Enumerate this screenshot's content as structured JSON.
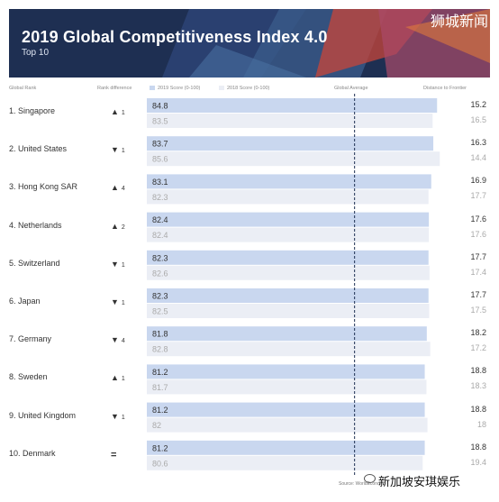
{
  "header": {
    "title": "2019 Global Competitiveness Index 4.0",
    "subtitle": "Top 10",
    "watermark": "狮城新闻",
    "col_rank": "Global Rank",
    "col_diff": "Rank difference",
    "legend_2019": "2019 Score (0-100)",
    "legend_2018": "2018 Score (0-100)",
    "col_global_avg": "Global Average",
    "col_distance": "Distance to Frontier"
  },
  "footer": {
    "source": "Source: WorldEcono...",
    "watermark": "新加坡安琪娱乐"
  },
  "colors": {
    "bar_2019": "#c9d7ef",
    "bar_2018": "#ebeef5",
    "banner": "#1e2f52",
    "avg_line": "#1e2f52"
  },
  "chart_data": {
    "type": "bar",
    "title": "2019 Global Competitiveness Index 4.0",
    "subtitle": "Top 10",
    "xlim": [
      0,
      100
    ],
    "global_average": 60.7,
    "rows": [
      {
        "rank_label": "1. Singapore",
        "diff_dir": "up",
        "diff_text": "1",
        "score_2019": 84.8,
        "label_2019": "84.8",
        "score_2018": 83.5,
        "label_2018": "83.5",
        "dist_2019": "15.2",
        "dist_2018": "16.5"
      },
      {
        "rank_label": "2. United States",
        "diff_dir": "down",
        "diff_text": "1",
        "score_2019": 83.7,
        "label_2019": "83.7",
        "score_2018": 85.6,
        "label_2018": "85.6",
        "dist_2019": "16.3",
        "dist_2018": "14.4"
      },
      {
        "rank_label": "3. Hong Kong SAR",
        "diff_dir": "up",
        "diff_text": "4",
        "score_2019": 83.1,
        "label_2019": "83.1",
        "score_2018": 82.3,
        "label_2018": "82.3",
        "dist_2019": "16.9",
        "dist_2018": "17.7"
      },
      {
        "rank_label": "4. Netherlands",
        "diff_dir": "up",
        "diff_text": "2",
        "score_2019": 82.4,
        "label_2019": "82.4",
        "score_2018": 82.4,
        "label_2018": "82.4",
        "dist_2019": "17.6",
        "dist_2018": "17.6"
      },
      {
        "rank_label": "5. Switzerland",
        "diff_dir": "down",
        "diff_text": "1",
        "score_2019": 82.3,
        "label_2019": "82.3",
        "score_2018": 82.6,
        "label_2018": "82.6",
        "dist_2019": "17.7",
        "dist_2018": "17.4"
      },
      {
        "rank_label": "6. Japan",
        "diff_dir": "down",
        "diff_text": "1",
        "score_2019": 82.3,
        "label_2019": "82.3",
        "score_2018": 82.5,
        "label_2018": "82.5",
        "dist_2019": "17.7",
        "dist_2018": "17.5"
      },
      {
        "rank_label": "7. Germany",
        "diff_dir": "down",
        "diff_text": "4",
        "score_2019": 81.8,
        "label_2019": "81.8",
        "score_2018": 82.8,
        "label_2018": "82.8",
        "dist_2019": "18.2",
        "dist_2018": "17.2"
      },
      {
        "rank_label": "8. Sweden",
        "diff_dir": "up",
        "diff_text": "1",
        "score_2019": 81.2,
        "label_2019": "81.2",
        "score_2018": 81.7,
        "label_2018": "81.7",
        "dist_2019": "18.8",
        "dist_2018": "18.3"
      },
      {
        "rank_label": "9. United Kingdom",
        "diff_dir": "down",
        "diff_text": "1",
        "score_2019": 81.2,
        "label_2019": "81.2",
        "score_2018": 82.0,
        "label_2018": "82",
        "dist_2019": "18.8",
        "dist_2018": "18"
      },
      {
        "rank_label": "10. Denmark",
        "diff_dir": "same",
        "diff_text": "",
        "score_2019": 81.2,
        "label_2019": "81.2",
        "score_2018": 80.6,
        "label_2018": "80.6",
        "dist_2019": "18.8",
        "dist_2018": "19.4"
      }
    ]
  }
}
